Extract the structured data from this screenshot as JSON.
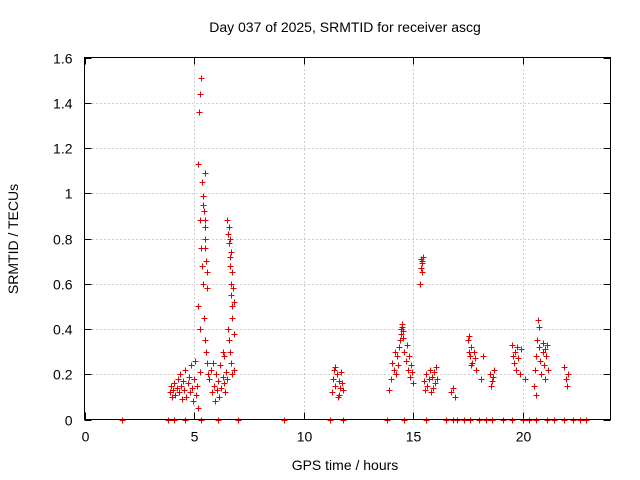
{
  "chart_data": {
    "type": "scatter",
    "title": "Day 037 of 2025, SRMTID for receiver ascg",
    "xlabel": "GPS time / hours",
    "ylabel": "SRMTID / TECUs",
    "xlim": [
      0,
      24
    ],
    "ylim": [
      0,
      1.6
    ],
    "xticks": [
      0,
      5,
      10,
      15,
      20
    ],
    "xtick_labels": [
      "0",
      "5",
      "10",
      "15",
      "20"
    ],
    "yticks": [
      0,
      0.2,
      0.4,
      0.6,
      0.8,
      1.0,
      1.2,
      1.4,
      1.6
    ],
    "ytick_labels": [
      "0",
      "0.2",
      "0.4",
      "0.6",
      "0.8",
      "1",
      "1.2",
      "1.4",
      "1.6"
    ],
    "grid": true,
    "marker": "+",
    "color": "#e00000",
    "series": [
      {
        "name": "SRMTID",
        "points": [
          [
            1.7,
            0
          ],
          [
            3.8,
            0
          ],
          [
            4.1,
            0
          ],
          [
            4.6,
            0
          ],
          [
            5.3,
            0
          ],
          [
            6.1,
            0
          ],
          [
            7.0,
            0
          ],
          [
            9.1,
            0
          ],
          [
            11.2,
            0
          ],
          [
            11.8,
            0
          ],
          [
            13.8,
            0
          ],
          [
            14.6,
            0
          ],
          [
            15.6,
            0
          ],
          [
            16.5,
            0
          ],
          [
            16.8,
            0
          ],
          [
            17.0,
            0
          ],
          [
            17.3,
            0
          ],
          [
            17.6,
            0
          ],
          [
            18.0,
            0
          ],
          [
            18.3,
            0
          ],
          [
            18.6,
            0
          ],
          [
            19.1,
            0
          ],
          [
            19.5,
            0
          ],
          [
            20.0,
            0
          ],
          [
            20.3,
            0
          ],
          [
            20.6,
            0
          ],
          [
            21.1,
            0
          ],
          [
            21.4,
            0
          ],
          [
            21.9,
            0
          ],
          [
            22.3,
            0
          ],
          [
            22.6,
            0
          ],
          [
            22.9,
            0
          ],
          [
            3.9,
            0.12
          ],
          [
            3.95,
            0.15
          ],
          [
            4.0,
            0.1
          ],
          [
            4.05,
            0.13
          ],
          [
            4.1,
            0.16
          ],
          [
            4.15,
            0.11
          ],
          [
            4.2,
            0.14
          ],
          [
            4.25,
            0.18
          ],
          [
            4.3,
            0.12
          ],
          [
            4.35,
            0.2
          ],
          [
            4.4,
            0.15
          ],
          [
            4.45,
            0.09
          ],
          [
            4.5,
            0.17
          ],
          [
            4.55,
            0.13
          ],
          [
            4.6,
            0.22
          ],
          [
            4.65,
            0.1
          ],
          [
            4.7,
            0.16
          ],
          [
            4.75,
            0.19
          ],
          [
            4.8,
            0.12
          ],
          [
            4.85,
            0.24
          ],
          [
            4.9,
            0.14
          ],
          [
            4.95,
            0.08
          ],
          [
            5.0,
            0.18
          ],
          [
            5.05,
            0.26
          ],
          [
            5.1,
            0.11
          ],
          [
            5.15,
            0.15
          ],
          [
            5.2,
            0.05
          ],
          [
            5.25,
            0.21
          ],
          [
            5.18,
            1.13
          ],
          [
            5.22,
            1.36
          ],
          [
            5.28,
            1.44
          ],
          [
            5.3,
            1.51
          ],
          [
            5.35,
            1.05
          ],
          [
            5.4,
            0.99
          ],
          [
            5.42,
            0.95
          ],
          [
            5.45,
            0.92
          ],
          [
            5.5,
            0.88
          ],
          [
            5.5,
            0.8
          ],
          [
            5.52,
            0.76
          ],
          [
            5.55,
            0.7
          ],
          [
            5.58,
            0.65
          ],
          [
            5.6,
            0.58
          ],
          [
            5.25,
            0.88
          ],
          [
            5.3,
            0.76
          ],
          [
            5.35,
            0.68
          ],
          [
            5.4,
            0.6
          ],
          [
            5.2,
            0.5
          ],
          [
            5.25,
            0.4
          ],
          [
            5.45,
            0.45
          ],
          [
            5.5,
            0.35
          ],
          [
            5.55,
            0.3
          ],
          [
            5.6,
            0.25
          ],
          [
            5.65,
            0.2
          ],
          [
            5.5,
            1.09
          ],
          [
            5.48,
            0.85
          ],
          [
            5.7,
            0.18
          ],
          [
            5.75,
            0.22
          ],
          [
            5.8,
            0.12
          ],
          [
            5.85,
            0.25
          ],
          [
            5.9,
            0.15
          ],
          [
            5.95,
            0.08
          ],
          [
            6.0,
            0.2
          ],
          [
            6.05,
            0.13
          ],
          [
            6.1,
            0.17
          ],
          [
            6.15,
            0.1
          ],
          [
            6.2,
            0.24
          ],
          [
            6.25,
            0.14
          ],
          [
            6.3,
            0.19
          ],
          [
            6.35,
            0.16
          ],
          [
            6.4,
            0.12
          ],
          [
            6.45,
            0.21
          ],
          [
            6.5,
            0.18
          ],
          [
            6.3,
            0.3
          ],
          [
            6.35,
            0.28
          ],
          [
            6.5,
            0.88
          ],
          [
            6.55,
            0.82
          ],
          [
            6.6,
            0.78
          ],
          [
            6.62,
            0.72
          ],
          [
            6.65,
            0.68
          ],
          [
            6.68,
            0.6
          ],
          [
            6.7,
            0.55
          ],
          [
            6.72,
            0.5
          ],
          [
            6.75,
            0.45
          ],
          [
            6.8,
            0.38
          ],
          [
            6.6,
            0.85
          ],
          [
            6.65,
            0.8
          ],
          [
            6.7,
            0.74
          ],
          [
            6.75,
            0.65
          ],
          [
            6.78,
            0.58
          ],
          [
            6.8,
            0.52
          ],
          [
            6.55,
            0.4
          ],
          [
            6.6,
            0.35
          ],
          [
            6.65,
            0.3
          ],
          [
            6.7,
            0.25
          ],
          [
            6.75,
            0.2
          ],
          [
            6.8,
            0.22
          ],
          [
            11.3,
            0.12
          ],
          [
            11.35,
            0.18
          ],
          [
            11.4,
            0.22
          ],
          [
            11.45,
            0.15
          ],
          [
            11.5,
            0.2
          ],
          [
            11.55,
            0.1
          ],
          [
            11.6,
            0.17
          ],
          [
            11.65,
            0.14
          ],
          [
            11.7,
            0.21
          ],
          [
            11.75,
            0.16
          ],
          [
            11.8,
            0.13
          ],
          [
            11.45,
            0.23
          ],
          [
            11.6,
            0.11
          ],
          [
            13.9,
            0.13
          ],
          [
            14.0,
            0.18
          ],
          [
            14.05,
            0.25
          ],
          [
            14.1,
            0.22
          ],
          [
            14.15,
            0.3
          ],
          [
            14.2,
            0.2
          ],
          [
            14.25,
            0.28
          ],
          [
            14.3,
            0.24
          ],
          [
            14.35,
            0.32
          ],
          [
            14.4,
            0.35
          ],
          [
            14.45,
            0.38
          ],
          [
            14.5,
            0.41
          ],
          [
            14.55,
            0.36
          ],
          [
            14.6,
            0.3
          ],
          [
            14.65,
            0.26
          ],
          [
            14.7,
            0.33
          ],
          [
            14.75,
            0.22
          ],
          [
            14.8,
            0.28
          ],
          [
            14.85,
            0.19
          ],
          [
            14.9,
            0.24
          ],
          [
            14.95,
            0.21
          ],
          [
            15.0,
            0.16
          ],
          [
            14.5,
            0.42
          ],
          [
            14.45,
            0.4
          ],
          [
            14.55,
            0.39
          ],
          [
            15.3,
            0.6
          ],
          [
            15.35,
            0.67
          ],
          [
            15.4,
            0.69
          ],
          [
            15.42,
            0.7
          ],
          [
            15.45,
            0.72
          ],
          [
            15.35,
            0.71
          ],
          [
            15.4,
            0.65
          ],
          [
            15.5,
            0.17
          ],
          [
            15.55,
            0.13
          ],
          [
            15.6,
            0.2
          ],
          [
            15.65,
            0.15
          ],
          [
            15.7,
            0.18
          ],
          [
            15.75,
            0.22
          ],
          [
            15.8,
            0.12
          ],
          [
            15.85,
            0.19
          ],
          [
            15.9,
            0.14
          ],
          [
            15.95,
            0.21
          ],
          [
            16.0,
            0.16
          ],
          [
            16.05,
            0.23
          ],
          [
            16.1,
            0.18
          ],
          [
            16.7,
            0.12
          ],
          [
            16.8,
            0.14
          ],
          [
            16.9,
            0.1
          ],
          [
            17.5,
            0.35
          ],
          [
            17.55,
            0.3
          ],
          [
            17.6,
            0.28
          ],
          [
            17.65,
            0.32
          ],
          [
            17.7,
            0.25
          ],
          [
            17.75,
            0.3
          ],
          [
            17.8,
            0.27
          ],
          [
            17.85,
            0.22
          ],
          [
            17.55,
            0.37
          ],
          [
            17.65,
            0.24
          ],
          [
            18.1,
            0.18
          ],
          [
            18.2,
            0.28
          ],
          [
            18.5,
            0.2
          ],
          [
            18.6,
            0.17
          ],
          [
            18.7,
            0.22
          ],
          [
            18.65,
            0.19
          ],
          [
            18.55,
            0.15
          ],
          [
            19.5,
            0.33
          ],
          [
            19.55,
            0.28
          ],
          [
            19.6,
            0.25
          ],
          [
            19.65,
            0.3
          ],
          [
            19.7,
            0.22
          ],
          [
            19.75,
            0.32
          ],
          [
            19.8,
            0.27
          ],
          [
            19.85,
            0.2
          ],
          [
            19.9,
            0.31
          ],
          [
            20.1,
            0.18
          ],
          [
            20.5,
            0.15
          ],
          [
            20.55,
            0.22
          ],
          [
            20.6,
            0.28
          ],
          [
            20.65,
            0.35
          ],
          [
            20.7,
            0.44
          ],
          [
            20.72,
            0.41
          ],
          [
            20.75,
            0.32
          ],
          [
            20.8,
            0.26
          ],
          [
            20.85,
            0.2
          ],
          [
            20.9,
            0.3
          ],
          [
            20.95,
            0.24
          ],
          [
            21.0,
            0.18
          ],
          [
            21.05,
            0.28
          ],
          [
            21.1,
            0.33
          ],
          [
            21.15,
            0.22
          ],
          [
            20.6,
            0.11
          ],
          [
            20.9,
            0.34
          ],
          [
            21.0,
            0.31
          ],
          [
            21.9,
            0.23
          ],
          [
            21.95,
            0.18
          ],
          [
            22.0,
            0.15
          ],
          [
            22.05,
            0.2
          ]
        ]
      }
    ]
  }
}
